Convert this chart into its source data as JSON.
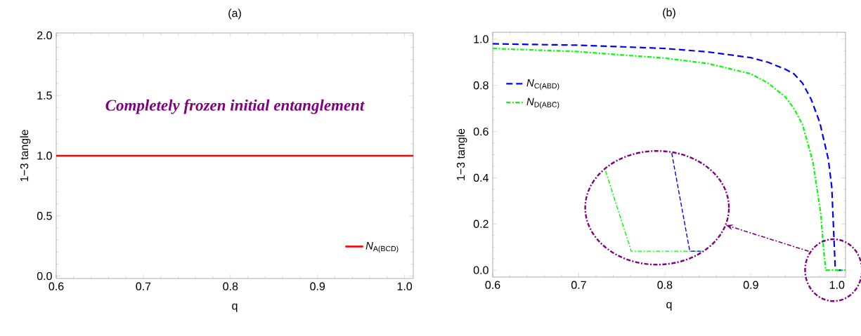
{
  "chart_data": [
    {
      "type": "line",
      "title": "(a)",
      "xlabel": "q",
      "ylabel": "1−3 tangle",
      "xlim": [
        0.6,
        1.01
      ],
      "ylim": [
        -0.02,
        2.02
      ],
      "xticks": [
        0.6,
        0.7,
        0.8,
        0.9,
        {
          "value": 1,
          "label": "1.0"
        }
      ],
      "yticks": [
        {
          "value": 0,
          "label": "0.0"
        },
        0.5,
        {
          "value": 1,
          "label": "1.0"
        },
        1.5,
        {
          "value": 2,
          "label": "2.0"
        }
      ],
      "legend": "bottom right",
      "grid": false,
      "annotations": [
        "Completely frozen initial entanglement"
      ],
      "series": [
        {
          "name": "*N*$_{A(BCD)}$",
          "color": "#ff0000",
          "line_style": "solid",
          "x": [
            0.6,
            1.01
          ],
          "values": [
            1.0,
            1.0
          ]
        }
      ]
    },
    {
      "type": "line",
      "title": "(b)",
      "xlabel": "q",
      "ylabel": "1−3 tangle",
      "xlim": [
        0.6,
        1.01
      ],
      "ylim": [
        -0.03,
        1.03
      ],
      "xticks": [
        0.6,
        0.7,
        0.8,
        0.9,
        {
          "value": 1,
          "label": "1.0"
        }
      ],
      "yticks": [
        {
          "value": 0,
          "label": "0.0"
        },
        0.2,
        0.4,
        0.6,
        0.8,
        {
          "value": 1,
          "label": "1.0"
        }
      ],
      "legend": "top left",
      "grid": false,
      "series": [
        {
          "name": "*N*$_{C(ABD)}$",
          "color": "#0000ff",
          "line_style": "dashed",
          "x": [
            0.6,
            0.7,
            0.8,
            0.85,
            0.9,
            0.92,
            0.94,
            0.95,
            0.96,
            0.97,
            0.98,
            0.99,
            0.994,
            0.998,
            1.0,
            1.01
          ],
          "values": [
            0.98,
            0.974,
            0.96,
            0.945,
            0.92,
            0.9,
            0.87,
            0.85,
            0.81,
            0.74,
            0.64,
            0.48,
            0.36,
            0.01,
            0.0,
            0.0
          ]
        },
        {
          "name": "*N*$_{D(ABC)}$",
          "color": "#00ff00",
          "line_style": "dashdot",
          "x": [
            0.6,
            0.7,
            0.8,
            0.85,
            0.9,
            0.92,
            0.94,
            0.95,
            0.96,
            0.972,
            0.981,
            0.985,
            0.987,
            1.0,
            1.01
          ],
          "values": [
            0.96,
            0.946,
            0.918,
            0.895,
            0.85,
            0.81,
            0.75,
            0.7,
            0.63,
            0.47,
            0.25,
            0.07,
            0.0,
            0.0,
            0.0
          ]
        }
      ]
    }
  ]
}
